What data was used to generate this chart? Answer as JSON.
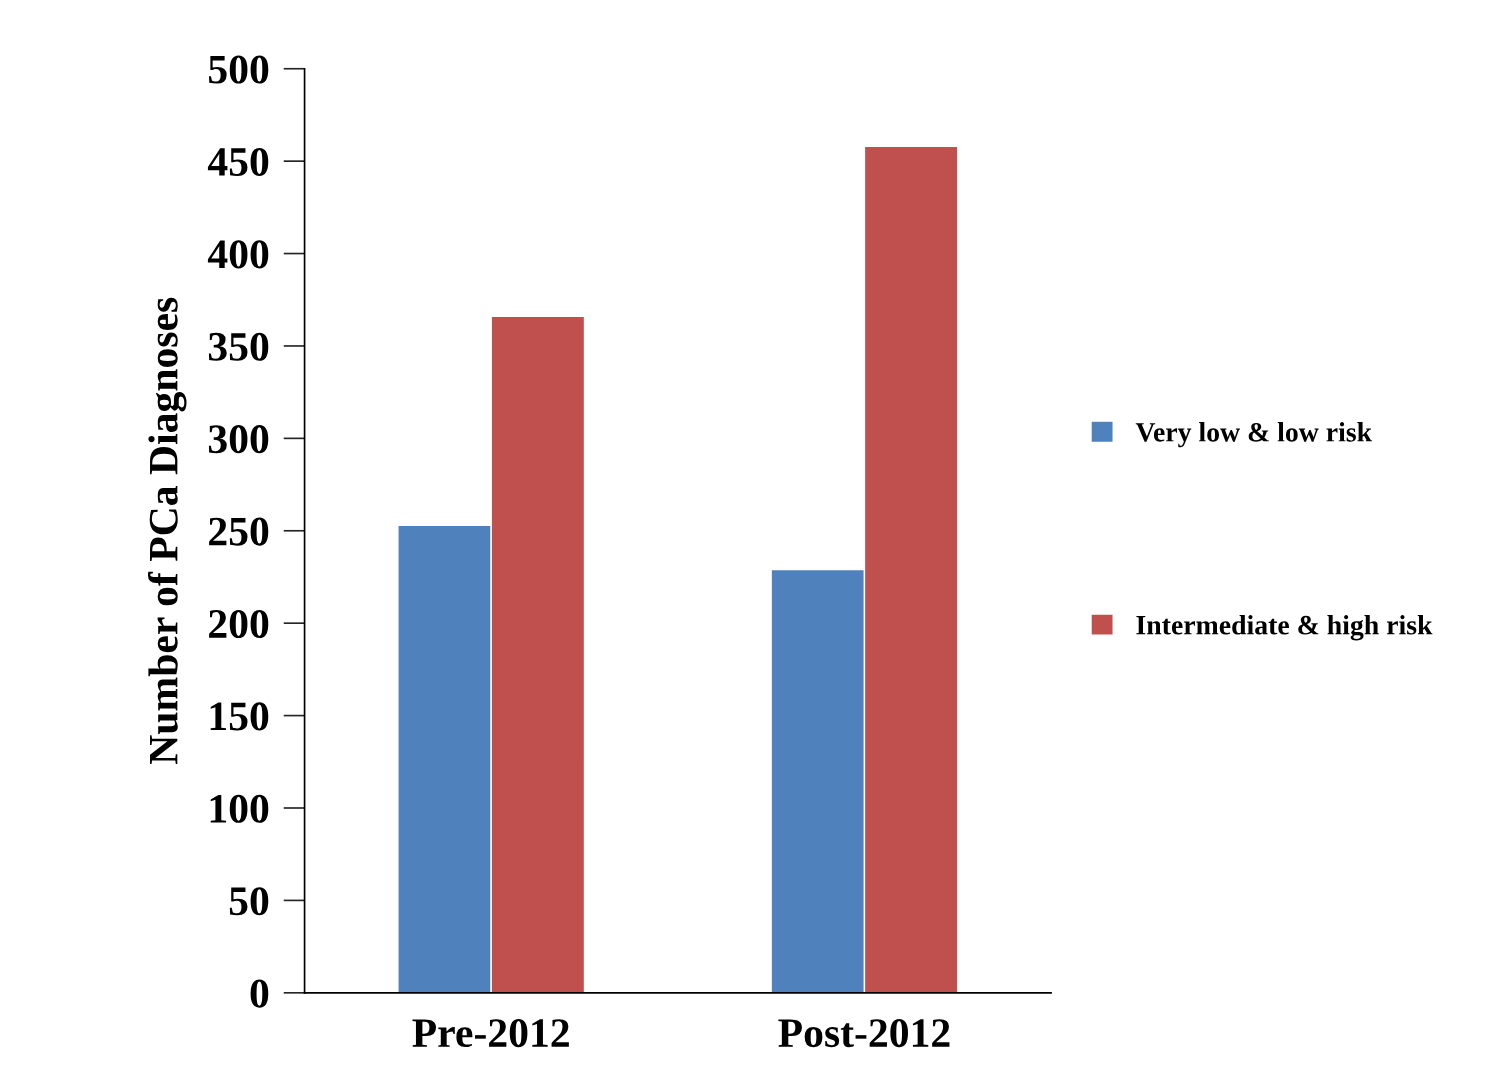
{
  "chart_data": {
    "type": "bar",
    "ylabel": "Number of PCa Diagnoses",
    "categories": [
      "Pre-2012",
      "Post-2012"
    ],
    "series": [
      {
        "name": "Very low & low risk",
        "color": "#4f81bd",
        "values": [
          253,
          229
        ]
      },
      {
        "name": "Intermediate & high risk",
        "color": "#c0504d",
        "values": [
          366,
          458
        ]
      }
    ],
    "ylim": [
      0,
      500
    ],
    "yticks": [
      0,
      50,
      100,
      150,
      200,
      250,
      300,
      350,
      400,
      450,
      500
    ],
    "grid": false,
    "legend": "right"
  }
}
